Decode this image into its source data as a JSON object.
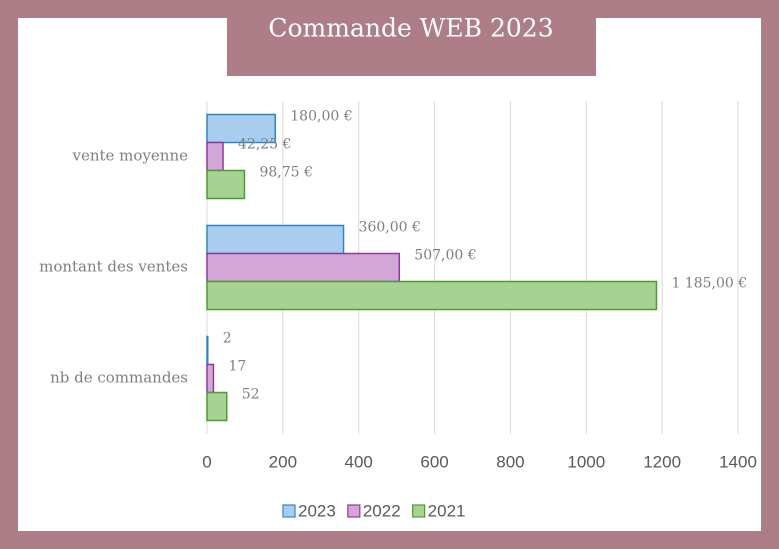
{
  "chart_data": {
    "type": "bar",
    "orientation": "horizontal",
    "title": "Commande WEB 2023",
    "categories": [
      "vente moyenne",
      "montant des ventes",
      "nb de commandes"
    ],
    "series": [
      {
        "name": "2023",
        "color": "#a9cdee",
        "edge_color": "#2e86c8",
        "values": [
          180,
          360,
          2
        ],
        "value_labels": [
          "180,00 €",
          "360,00 €",
          "2"
        ]
      },
      {
        "name": "2022",
        "color": "#d3a6d8",
        "edge_color": "#8e3a99",
        "values": [
          42.25,
          507,
          17
        ],
        "value_labels": [
          "42,25 €",
          "507,00 €",
          "17"
        ]
      },
      {
        "name": "2021",
        "color": "#a6d392",
        "edge_color": "#4f9a35",
        "values": [
          98.75,
          1185,
          52
        ],
        "value_labels": [
          "98,75 €",
          "1 185,00 €",
          "52"
        ]
      }
    ],
    "xlim": [
      0,
      1400
    ],
    "xticks": [
      0,
      200,
      400,
      600,
      800,
      1000,
      1200,
      1400
    ],
    "grid": true,
    "legend": "bottom"
  }
}
